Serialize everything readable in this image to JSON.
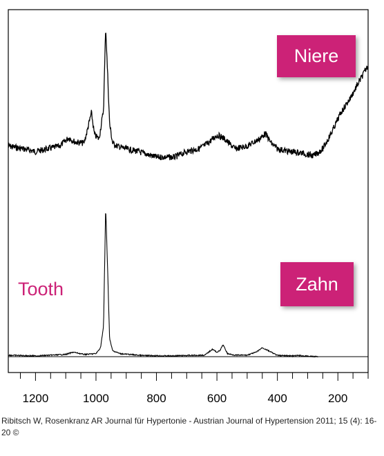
{
  "colors": {
    "axis": "#000000",
    "trace": "#000000",
    "label_box": "#cc2277",
    "tooth_text": "#cc2277"
  },
  "chart_data": {
    "type": "line",
    "x_axis": {
      "reversed": true,
      "range": [
        1290,
        100
      ],
      "tick_labels": [
        "1200",
        "1000",
        "800",
        "600",
        "400",
        "200"
      ],
      "tick_values": [
        1200,
        1000,
        800,
        600,
        400,
        200
      ],
      "minor_tick_step": 50
    },
    "y_axis": {
      "visible": false
    },
    "grid": false,
    "series": [
      {
        "name": "Niere",
        "noisy": true,
        "points": [
          [
            1290,
            0.14
          ],
          [
            1240,
            0.12
          ],
          [
            1200,
            0.1
          ],
          [
            1160,
            0.12
          ],
          [
            1120,
            0.14
          ],
          [
            1090,
            0.2
          ],
          [
            1070,
            0.17
          ],
          [
            1040,
            0.16
          ],
          [
            1030,
            0.24
          ],
          [
            1015,
            0.38
          ],
          [
            1005,
            0.22
          ],
          [
            990,
            0.19
          ],
          [
            975,
            0.4
          ],
          [
            968,
            1.0
          ],
          [
            960,
            0.58
          ],
          [
            955,
            0.3
          ],
          [
            945,
            0.16
          ],
          [
            930,
            0.14
          ],
          [
            900,
            0.12
          ],
          [
            860,
            0.1
          ],
          [
            800,
            0.06
          ],
          [
            740,
            0.06
          ],
          [
            700,
            0.1
          ],
          [
            660,
            0.12
          ],
          [
            630,
            0.16
          ],
          [
            600,
            0.22
          ],
          [
            580,
            0.2
          ],
          [
            540,
            0.12
          ],
          [
            500,
            0.14
          ],
          [
            460,
            0.19
          ],
          [
            440,
            0.23
          ],
          [
            420,
            0.16
          ],
          [
            400,
            0.12
          ],
          [
            360,
            0.1
          ],
          [
            320,
            0.09
          ],
          [
            280,
            0.07
          ],
          [
            250,
            0.12
          ],
          [
            220,
            0.24
          ],
          [
            190,
            0.38
          ],
          [
            160,
            0.48
          ],
          [
            130,
            0.6
          ],
          [
            100,
            0.72
          ]
        ]
      },
      {
        "name": "Zahn",
        "noisy": false,
        "points": [
          [
            1290,
            0.01
          ],
          [
            1200,
            0.005
          ],
          [
            1100,
            0.015
          ],
          [
            1075,
            0.03
          ],
          [
            1040,
            0.015
          ],
          [
            1000,
            0.02
          ],
          [
            985,
            0.06
          ],
          [
            975,
            0.2
          ],
          [
            968,
            1.0
          ],
          [
            962,
            0.62
          ],
          [
            955,
            0.12
          ],
          [
            945,
            0.04
          ],
          [
            920,
            0.02
          ],
          [
            850,
            0.008
          ],
          [
            750,
            0.005
          ],
          [
            700,
            0.008
          ],
          [
            640,
            0.01
          ],
          [
            615,
            0.05
          ],
          [
            600,
            0.03
          ],
          [
            590,
            0.04
          ],
          [
            580,
            0.08
          ],
          [
            565,
            0.02
          ],
          [
            540,
            0.01
          ],
          [
            500,
            0.01
          ],
          [
            470,
            0.03
          ],
          [
            450,
            0.06
          ],
          [
            430,
            0.04
          ],
          [
            400,
            0.008
          ],
          [
            350,
            0.005
          ],
          [
            330,
            0.008
          ],
          [
            300,
            0.003
          ],
          [
            265,
            0.0
          ]
        ]
      }
    ],
    "annotations": [
      "Niere",
      "Zahn",
      "Tooth"
    ]
  },
  "labels": {
    "niere": "Niere",
    "zahn": "Zahn",
    "tooth": "Tooth"
  },
  "caption": "Ribitsch W, Rosenkranz AR Journal für Hypertonie - Austrian Journal of Hypertension 2011; 15 (4): 16-20 ©"
}
